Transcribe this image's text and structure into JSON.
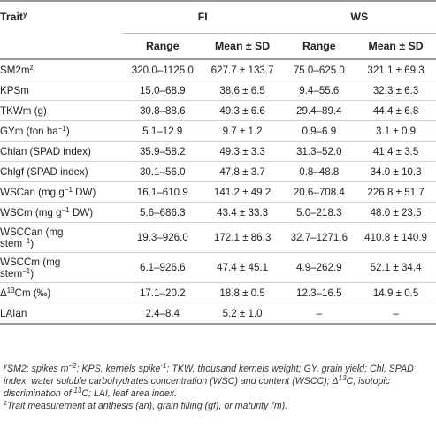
{
  "table": {
    "header_trait": "Trait",
    "header_trait_sup": "y",
    "group_fi": "FI",
    "group_ws": "WS",
    "col_range": "Range",
    "col_mean": "Mean ± SD",
    "rows": [
      {
        "trait": "SM2m",
        "sup": "z",
        "after": "",
        "tall": false,
        "fi_range": "320.0–1125.0",
        "fi_mean": "627.7 ± 133.7",
        "ws_range": "75.0–625.0",
        "ws_mean": "321.1 ± 69.3"
      },
      {
        "trait": "KPSm",
        "sup": "",
        "after": "",
        "tall": false,
        "fi_range": "15.0–68.9",
        "fi_mean": "38.6 ± 6.5",
        "ws_range": "9.4–55.6",
        "ws_mean": "32.3 ± 6.3"
      },
      {
        "trait": "TKWm (g)",
        "sup": "",
        "after": "",
        "tall": false,
        "fi_range": "30.8–88.6",
        "fi_mean": "49.3 ± 6.6",
        "ws_range": "29.4–89.4",
        "ws_mean": "44.4 ± 6.8"
      },
      {
        "trait": "GYm (ton ha",
        "sup": "−1",
        "after": ")",
        "tall": false,
        "fi_range": "5.1–12.9",
        "fi_mean": "9.7 ± 1.2",
        "ws_range": "0.9–6.9",
        "ws_mean": "3.1 ± 0.9"
      },
      {
        "trait": "Chlan (SPAD index)",
        "sup": "",
        "after": "",
        "tall": false,
        "fi_range": "35.9–58.2",
        "fi_mean": "49.3 ± 3.3",
        "ws_range": "31.3–52.0",
        "ws_mean": "41.4 ± 3.5"
      },
      {
        "trait": "Chlgf (SPAD index)",
        "sup": "",
        "after": "",
        "tall": false,
        "fi_range": "30.1–56.0",
        "fi_mean": "47.8 ± 3.7",
        "ws_range": "0.8–48.8",
        "ws_mean": "34.0 ± 10.3"
      },
      {
        "trait": "WSCan (mg g",
        "sup": "−1",
        "after": " DW)",
        "tall": false,
        "fi_range": "16.1–610.9",
        "fi_mean": "141.2 ± 49.2",
        "ws_range": "20.6–708.4",
        "ws_mean": "226.8 ± 51.7"
      },
      {
        "trait": "WSCm (mg g",
        "sup": "−1",
        "after": " DW)",
        "tall": false,
        "fi_range": "5.6–686.3",
        "fi_mean": "43.4 ± 33.3",
        "ws_range": "5.0–218.3",
        "ws_mean": "48.0 ± 23.5"
      },
      {
        "trait": "WSCCan (mg",
        "line2": "stem",
        "sup": "−1",
        "after": ")",
        "tall": true,
        "fi_range": "19.3–926.0",
        "fi_mean": "172.1 ± 86.3",
        "ws_range": "32.7–1271.6",
        "ws_mean": "410.8 ± 140.9"
      },
      {
        "trait": "WSCCm (mg",
        "line2": "stem",
        "sup": "−1",
        "after": ")",
        "tall": true,
        "fi_range": "6.1–926.6",
        "fi_mean": "47.4 ± 45.1",
        "ws_range": "4.9–262.9",
        "ws_mean": "52.1 ± 34.4"
      },
      {
        "trait": "Δ",
        "sup": "13",
        "after": "Cm (‰)",
        "tall": false,
        "fi_range": "17.1–20.2",
        "fi_mean": "18.8 ± 0.5",
        "ws_range": "12.3–16.5",
        "ws_mean": "14.9 ± 0.5"
      },
      {
        "trait": "LAIan",
        "sup": "",
        "after": "",
        "tall": false,
        "fi_range": "2.4–8.4",
        "fi_mean": "5.2 ± 1.0",
        "ws_range": "–",
        "ws_mean": "–"
      }
    ]
  },
  "footnotes": {
    "y_mark": "y",
    "y_text_1": "SM2: spikes m",
    "y_sup_1": "−2",
    "y_text_2": "; KPS, kernels spike",
    "y_sup_2": "-1",
    "y_text_3": "; TKW, thousand kernels weight; GY, grain yield; Chl, SPAD index; water soluble carbohydrates concentration (WSC) and content (WSCC); Δ",
    "y_sup_3": "13",
    "y_text_4": "C, isotopic discrimination of ",
    "y_sup_4": "13",
    "y_text_5": "C; LAI, leaf area index.",
    "z_mark": "z",
    "z_text": "Trait measurement at anthesis (an), grain filling (gf), or maturity (m)."
  }
}
